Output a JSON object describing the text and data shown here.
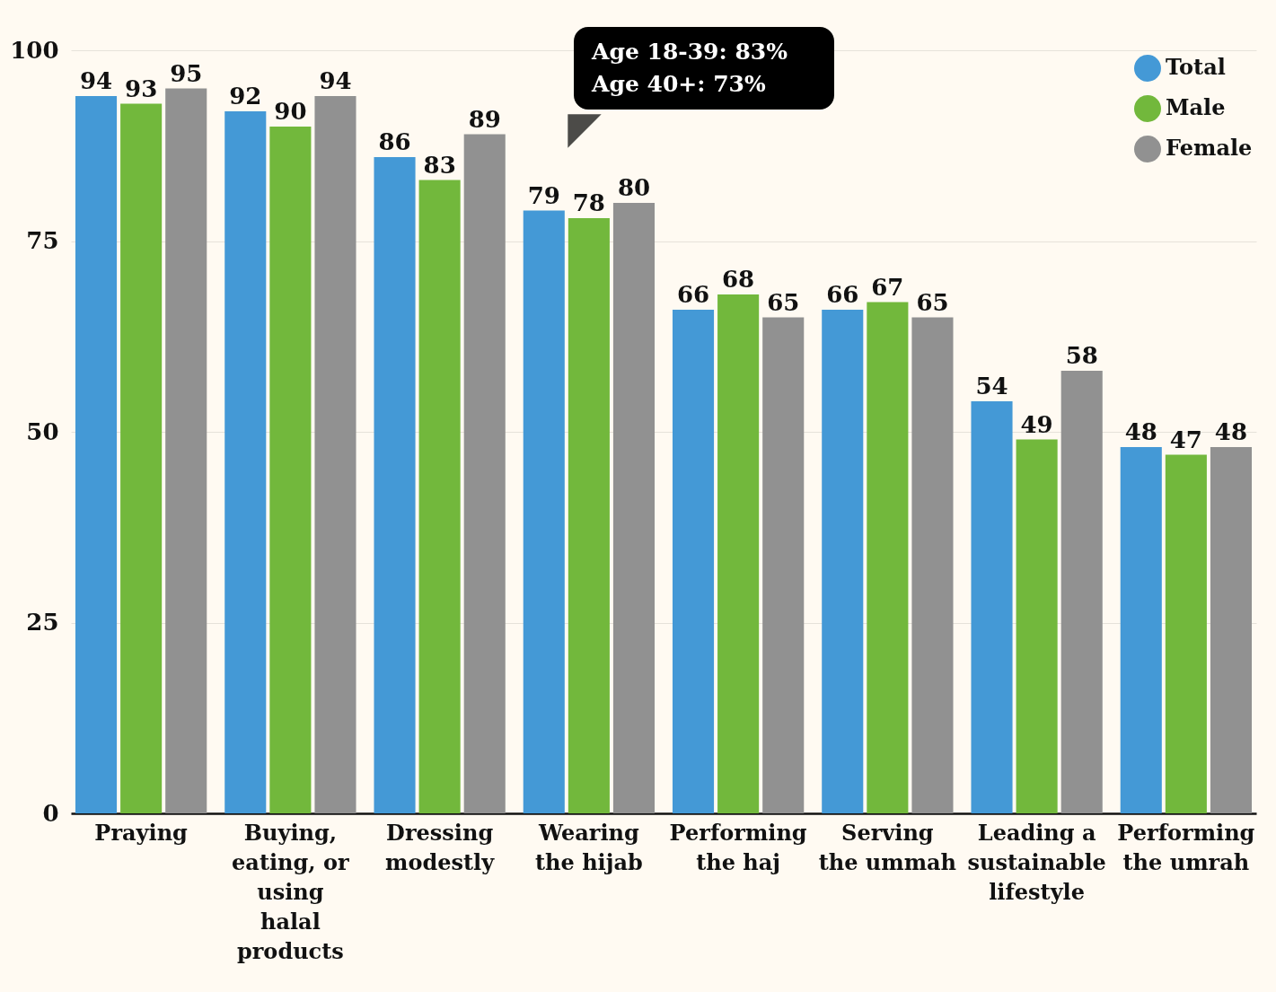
{
  "chart_data": {
    "type": "bar",
    "categories": [
      "Praying",
      "Buying, eating, or using halal products",
      "Dressing modestly",
      "Wearing the hijab",
      "Performing the haj",
      "Serving the ummah",
      "Leading a sustainable lifestyle",
      "Performing the umrah"
    ],
    "series": [
      {
        "name": "Total",
        "color": "#4499d6",
        "values": [
          94,
          92,
          86,
          79,
          66,
          66,
          54,
          48
        ]
      },
      {
        "name": "Male",
        "color": "#72b83c",
        "values": [
          93,
          90,
          83,
          78,
          68,
          67,
          49,
          47
        ]
      },
      {
        "name": "Female",
        "color": "#919191",
        "values": [
          95,
          94,
          89,
          80,
          65,
          65,
          58,
          48
        ]
      }
    ],
    "ylim": [
      0,
      100
    ],
    "yticks": [
      0,
      25,
      50,
      75,
      100
    ],
    "grid": "y",
    "legend": "top right",
    "data_labels": true,
    "annotations": [
      "Age 18-39: 83%",
      "Age 40+: 73%"
    ]
  }
}
